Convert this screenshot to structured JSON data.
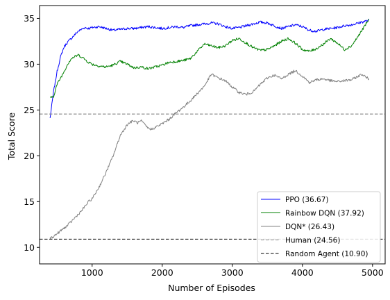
{
  "chart_data": {
    "type": "line",
    "xlabel": "Number of Episodes",
    "ylabel": "Total Score",
    "xlim": [
      250,
      5180
    ],
    "ylim": [
      8.2,
      36.4
    ],
    "xticks": [
      1000,
      2000,
      3000,
      4000,
      5000
    ],
    "yticks": [
      10,
      15,
      20,
      25,
      30,
      35
    ],
    "grid": false,
    "legend_position": "lower-right",
    "series": [
      {
        "name": "PPO (36.67)",
        "color": "#0000ff",
        "x": [
          400,
          450,
          500,
          550,
          600,
          650,
          700,
          750,
          800,
          850,
          900,
          950,
          1000,
          1100,
          1200,
          1300,
          1400,
          1500,
          1600,
          1700,
          1800,
          1900,
          2000,
          2100,
          2200,
          2300,
          2400,
          2500,
          2600,
          2700,
          2800,
          2900,
          3000,
          3100,
          3200,
          3300,
          3400,
          3500,
          3600,
          3700,
          3800,
          3900,
          4000,
          4100,
          4200,
          4300,
          4400,
          4500,
          4600,
          4700,
          4800,
          4850,
          4900,
          4950
        ],
        "y": [
          24.1,
          27.0,
          29.2,
          30.8,
          31.9,
          32.4,
          32.8,
          33.2,
          33.6,
          33.8,
          34.0,
          33.9,
          34.0,
          34.1,
          33.9,
          33.7,
          33.8,
          33.9,
          33.9,
          34.0,
          34.1,
          34.0,
          33.9,
          34.0,
          34.1,
          34.0,
          34.2,
          34.3,
          34.4,
          34.5,
          34.4,
          34.1,
          33.9,
          34.0,
          34.2,
          34.4,
          34.6,
          34.5,
          34.2,
          33.9,
          34.1,
          34.3,
          34.1,
          33.7,
          33.6,
          33.8,
          33.9,
          34.0,
          34.2,
          34.3,
          34.5,
          34.6,
          34.7,
          34.8
        ]
      },
      {
        "name": "Rainbow DQN (37.92)",
        "color": "#008000",
        "x": [
          400,
          450,
          500,
          550,
          600,
          650,
          700,
          750,
          800,
          850,
          900,
          950,
          1000,
          1100,
          1200,
          1300,
          1400,
          1500,
          1600,
          1700,
          1800,
          1900,
          2000,
          2100,
          2200,
          2300,
          2400,
          2500,
          2600,
          2700,
          2800,
          2900,
          3000,
          3100,
          3200,
          3300,
          3400,
          3500,
          3600,
          3700,
          3800,
          3900,
          4000,
          4100,
          4200,
          4300,
          4400,
          4500,
          4600,
          4700,
          4800,
          4850,
          4900,
          4950
        ],
        "y": [
          26.3,
          26.5,
          27.8,
          28.5,
          29.2,
          30.0,
          30.6,
          30.8,
          31.0,
          30.8,
          30.5,
          30.2,
          30.0,
          29.8,
          29.7,
          29.9,
          30.3,
          30.0,
          29.6,
          29.7,
          29.5,
          29.7,
          29.9,
          30.2,
          30.3,
          30.4,
          30.6,
          31.4,
          32.2,
          32.0,
          31.8,
          32.0,
          32.6,
          32.8,
          32.3,
          31.8,
          31.5,
          31.6,
          32.0,
          32.5,
          32.8,
          32.3,
          31.6,
          31.4,
          31.7,
          32.2,
          32.8,
          32.3,
          31.6,
          32.0,
          33.1,
          33.7,
          34.3,
          34.9
        ]
      },
      {
        "name": "DQN* (26.43)",
        "color": "#808080",
        "x": [
          400,
          450,
          500,
          550,
          600,
          650,
          700,
          750,
          800,
          850,
          900,
          950,
          1000,
          1100,
          1200,
          1300,
          1400,
          1500,
          1550,
          1600,
          1650,
          1700,
          1750,
          1800,
          1850,
          1900,
          2000,
          2100,
          2200,
          2300,
          2400,
          2500,
          2600,
          2700,
          2800,
          2900,
          3000,
          3100,
          3200,
          3300,
          3400,
          3500,
          3600,
          3700,
          3800,
          3900,
          4000,
          4100,
          4200,
          4300,
          4400,
          4500,
          4600,
          4700,
          4800,
          4850,
          4900,
          4950
        ],
        "y": [
          11.0,
          11.2,
          11.5,
          11.8,
          12.1,
          12.4,
          12.8,
          13.2,
          13.6,
          14.0,
          14.5,
          15.0,
          15.3,
          16.6,
          18.2,
          20.0,
          22.2,
          23.4,
          23.7,
          23.8,
          23.6,
          23.8,
          23.4,
          23.0,
          22.9,
          23.1,
          23.5,
          24.0,
          24.7,
          25.3,
          26.0,
          26.8,
          27.6,
          28.9,
          28.5,
          28.2,
          27.5,
          26.9,
          26.7,
          27.0,
          27.8,
          28.5,
          28.8,
          28.4,
          28.9,
          29.3,
          28.7,
          28.0,
          28.3,
          28.4,
          28.2,
          28.1,
          28.2,
          28.3,
          28.7,
          28.9,
          28.6,
          28.4
        ]
      },
      {
        "name": "Human (24.56)",
        "color": "#808080",
        "style": "dashed",
        "y_constant": 24.56
      },
      {
        "name": "Random Agent (10.90)",
        "color": "#000000",
        "style": "dashed",
        "y_constant": 10.9
      }
    ]
  }
}
